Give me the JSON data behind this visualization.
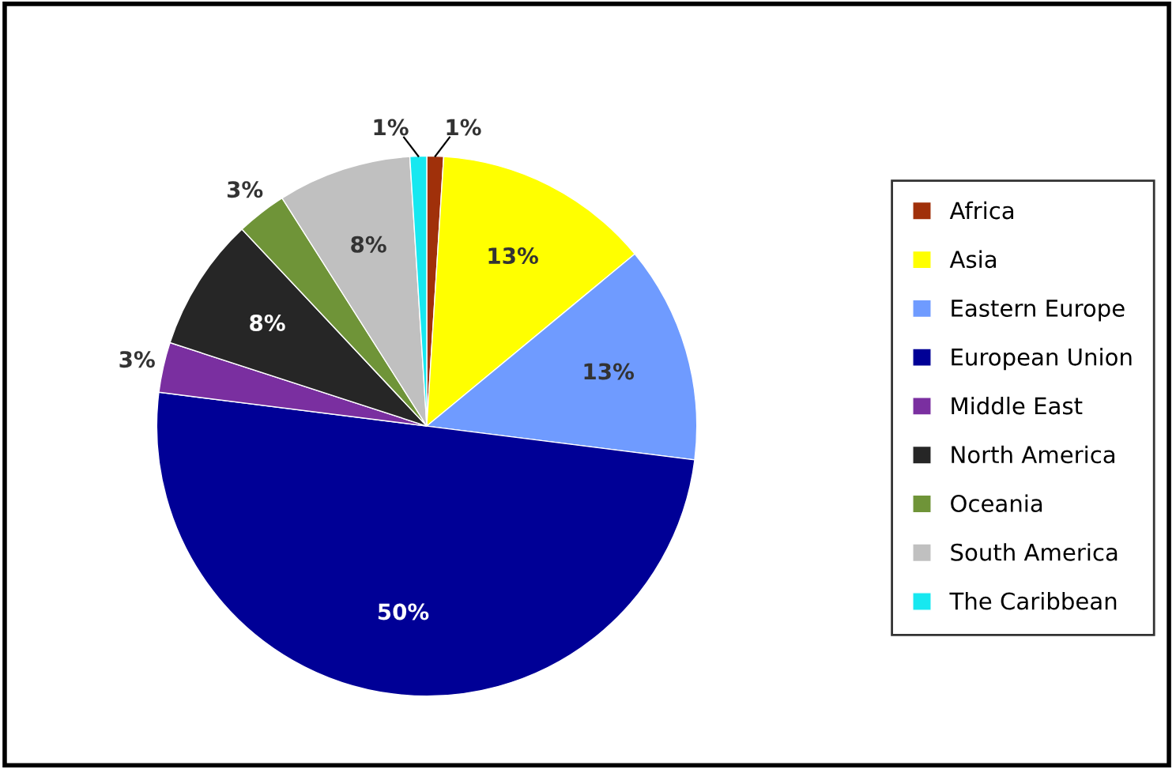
{
  "chart_data": {
    "type": "pie",
    "categories": [
      "Africa",
      "Asia",
      "Eastern Europe",
      "European Union",
      "Middle East",
      "North America",
      "Oceania",
      "South America",
      "The Caribbean"
    ],
    "values": [
      1,
      13,
      13,
      50,
      3,
      8,
      3,
      8,
      1
    ],
    "colors": [
      "#a0300a",
      "#ffff00",
      "#6f9bff",
      "#000096",
      "#7a2fa0",
      "#262626",
      "#6f9438",
      "#c0c0c0",
      "#17e8f0"
    ],
    "value_labels": [
      "1%",
      "13%",
      "13%",
      "50%",
      "3%",
      "8%",
      "3%",
      "8%",
      "1%"
    ],
    "legend": "right"
  }
}
